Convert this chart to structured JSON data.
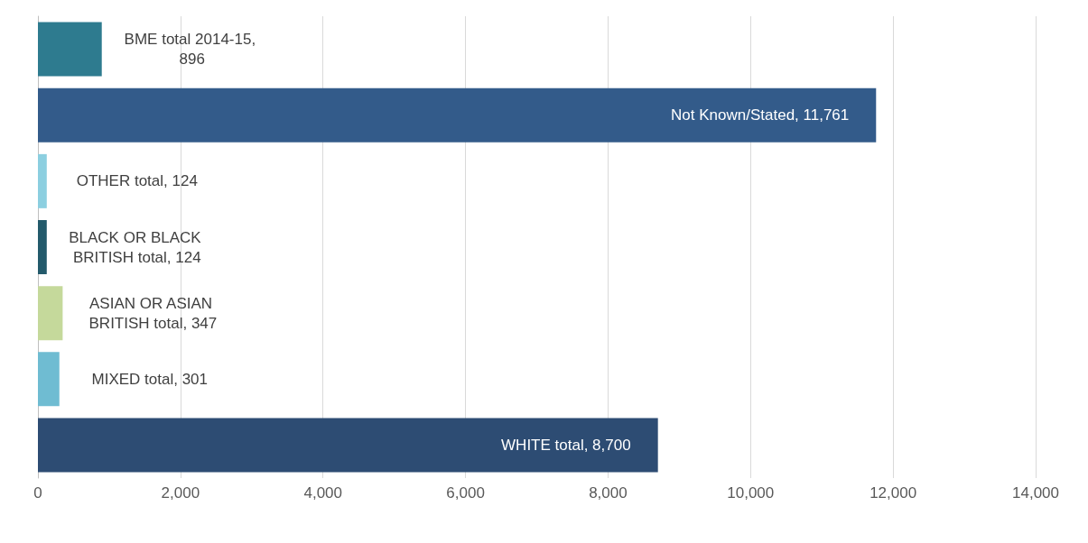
{
  "chart_data": {
    "type": "bar",
    "orientation": "horizontal",
    "categories": [
      null,
      null,
      null,
      null,
      null,
      null,
      null
    ],
    "values": [
      896,
      11761,
      124,
      124,
      347,
      301,
      8700
    ],
    "colors": [
      "#2e7b8f",
      "#335b8a",
      "#8ccfe0",
      "#235a6b",
      "#c5d99b",
      "#6fbcd2",
      "#2d4c73"
    ],
    "value_labels": [
      "BME total 2014-15, 896",
      "Not Known/Stated, 11,761",
      "OTHER total, 124",
      "BLACK OR BLACK BRITISH total, 124",
      "ASIAN OR ASIAN BRITISH total, 347",
      "MIXED total, 301",
      "WHITE total, 8,700"
    ],
    "xlim": [
      0,
      14000
    ],
    "xticks": [
      0,
      {
        "value": 2000,
        "label": "2,000"
      },
      {
        "value": 4000,
        "label": "4,000"
      },
      {
        "value": 6000,
        "label": "6,000"
      },
      {
        "value": 8000,
        "label": "8,000"
      },
      {
        "value": 10000,
        "label": "10,000"
      },
      {
        "value": 12000,
        "label": "12,000"
      },
      {
        "value": 14000,
        "label": "14,000"
      }
    ],
    "grid": "x",
    "tick_labels": "x"
  }
}
